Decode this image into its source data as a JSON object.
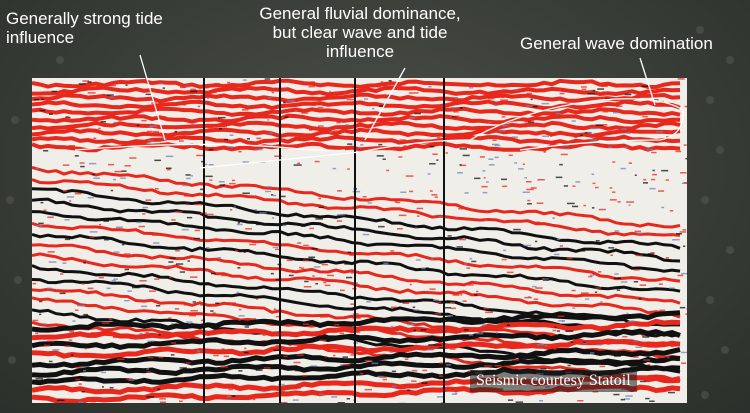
{
  "labels": {
    "left": "Generally strong tide influence",
    "left_line1": "Generally strong tide",
    "left_line2": "influence",
    "middle_line1": "General fluvial dominance,",
    "middle_line2": "but clear wave and tide",
    "middle_line3": "influence",
    "right": "General wave domination"
  },
  "credit": "Seismic courtesy Statoil",
  "colors": {
    "background": "#3a3e38",
    "seismic_red": "#e8281c",
    "seismic_black": "#111111",
    "seismic_white": "#f4f3ee"
  }
}
